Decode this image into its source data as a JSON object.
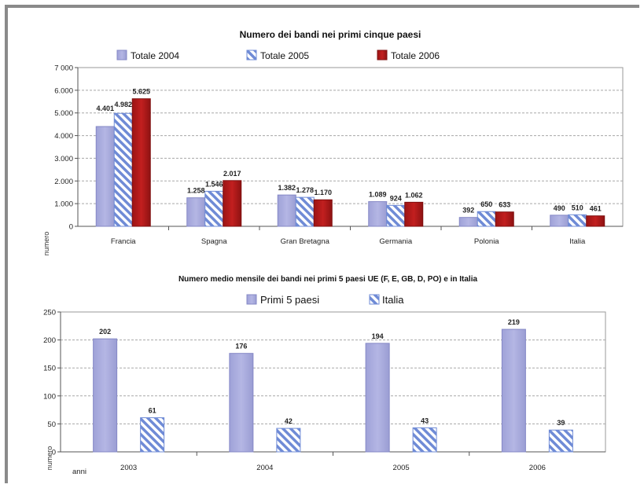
{
  "colors": {
    "lavender": "#a7a9dd",
    "lavender_stroke": "#8588c6",
    "hatch_blue": "#6f8bd6",
    "red": "#b51b1b",
    "red_dark": "#7e0f0f",
    "grid": "#a8a8a8",
    "plot_bg": "#ffffff",
    "frame": "#8a8a8a"
  },
  "chart_data": [
    {
      "type": "bar",
      "title": "Numero dei bandi nei primi cinque paesi",
      "ylabel": "numero",
      "xlabel": "",
      "ylim": [
        0,
        7000
      ],
      "y_ticks": [
        0,
        1000,
        2000,
        3000,
        4000,
        5000,
        6000,
        7000
      ],
      "y_tick_labels": [
        "0",
        "1.000",
        "2.000",
        "3.000",
        "4.000",
        "5.000",
        "6.000",
        "7 000"
      ],
      "grid": true,
      "legend_position": "top",
      "categories": [
        "Francia",
        "Spagna",
        "Gran Bretagna",
        "Germania",
        "Polonia",
        "Italia"
      ],
      "series": [
        {
          "name": "Totale 2004",
          "style": "solid-lavender",
          "values": [
            4401,
            1258,
            1382,
            1089,
            392,
            490
          ],
          "labels": [
            "4.401",
            "1.258",
            "1.382",
            "1.089",
            "392",
            "490"
          ]
        },
        {
          "name": "Totale 2005",
          "style": "hatched-blue",
          "values": [
            4982,
            1546,
            1278,
            924,
            650,
            510
          ],
          "labels": [
            "4.982",
            "1.546",
            "1.278",
            "924",
            "650",
            "510"
          ]
        },
        {
          "name": "Totale 2006",
          "style": "solid-red",
          "values": [
            5625,
            2017,
            1170,
            1062,
            633,
            461
          ],
          "labels": [
            "5.625",
            "2.017",
            "1.170",
            "1.062",
            "633",
            "461"
          ]
        }
      ]
    },
    {
      "type": "bar",
      "title": "Numero medio mensile dei bandi nei primi 5 paesi UE (F, E, GB, D, PO) e in Italia",
      "ylabel": "numero",
      "xlabel": "anni",
      "ylim": [
        0,
        250
      ],
      "y_ticks": [
        0,
        50,
        100,
        150,
        200,
        250
      ],
      "y_tick_labels": [
        "0",
        "50",
        "100",
        "150",
        "200",
        "250"
      ],
      "grid": true,
      "legend_position": "top",
      "categories": [
        "2003",
        "2004",
        "2005",
        "2006"
      ],
      "series": [
        {
          "name": "Primi 5 paesi",
          "style": "solid-lavender",
          "values": [
            202,
            176,
            194,
            219
          ],
          "labels": [
            "202",
            "176",
            "194",
            "219"
          ]
        },
        {
          "name": "Italia",
          "style": "hatched-blue",
          "values": [
            61,
            42,
            43,
            39
          ],
          "labels": [
            "61",
            "42",
            "43",
            "39"
          ]
        }
      ]
    }
  ]
}
